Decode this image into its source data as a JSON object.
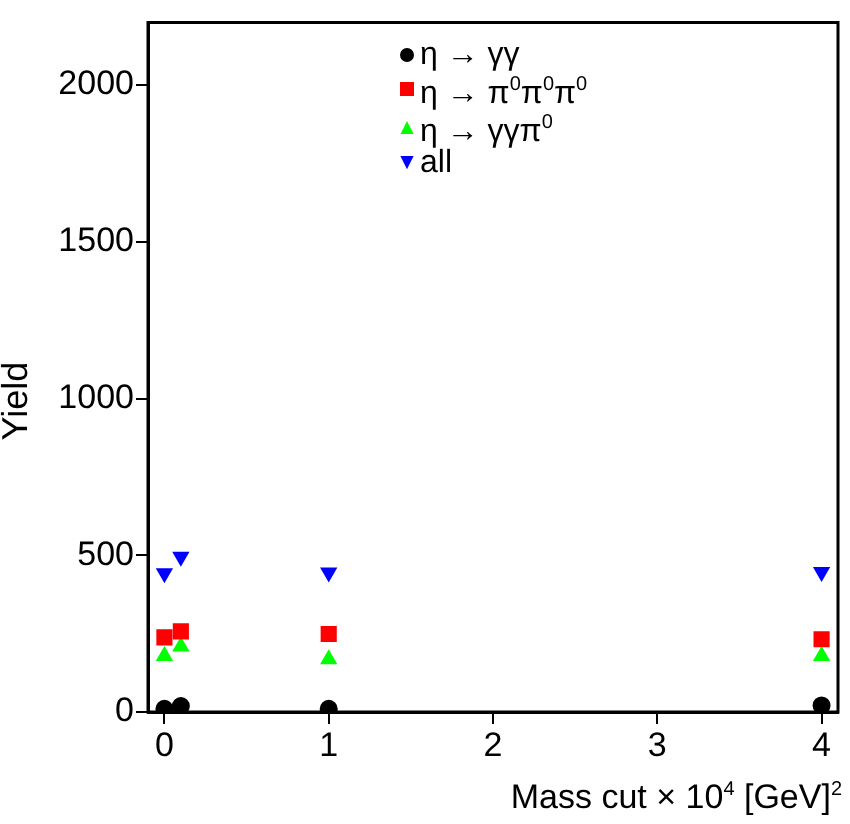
{
  "chart_data": {
    "type": "scatter",
    "xlabel": "Mass cut × 10$^{4}$ [GeV]$^{2}$",
    "ylabel": "Yield",
    "xlim": [
      -0.1,
      4.1
    ],
    "xticks": [
      0,
      1,
      2,
      3,
      4
    ],
    "ylim": [
      0,
      2200
    ],
    "yticks": [
      0,
      500,
      1000,
      1500,
      2000
    ],
    "x": [
      0,
      0.1,
      1,
      4
    ],
    "legend": "top",
    "grid": false,
    "series": [
      {
        "name": "η → γγ",
        "color": "#000000",
        "marker": "circle",
        "values": [
          10,
          19,
          10,
          21
        ]
      },
      {
        "name": "η → π$^{0}$π$^{0}$π$^{0}$",
        "color": "#ff0000",
        "marker": "square",
        "values": [
          238,
          257,
          249,
          232
        ]
      },
      {
        "name": "η → γγπ$^{0}$",
        "color": "#00ff00",
        "marker": "triangle",
        "values": [
          179,
          209,
          168,
          179
        ]
      },
      {
        "name": "all",
        "color": "#0000ff",
        "marker": "triangle-down",
        "values": [
          443,
          495,
          445,
          447
        ]
      }
    ]
  }
}
